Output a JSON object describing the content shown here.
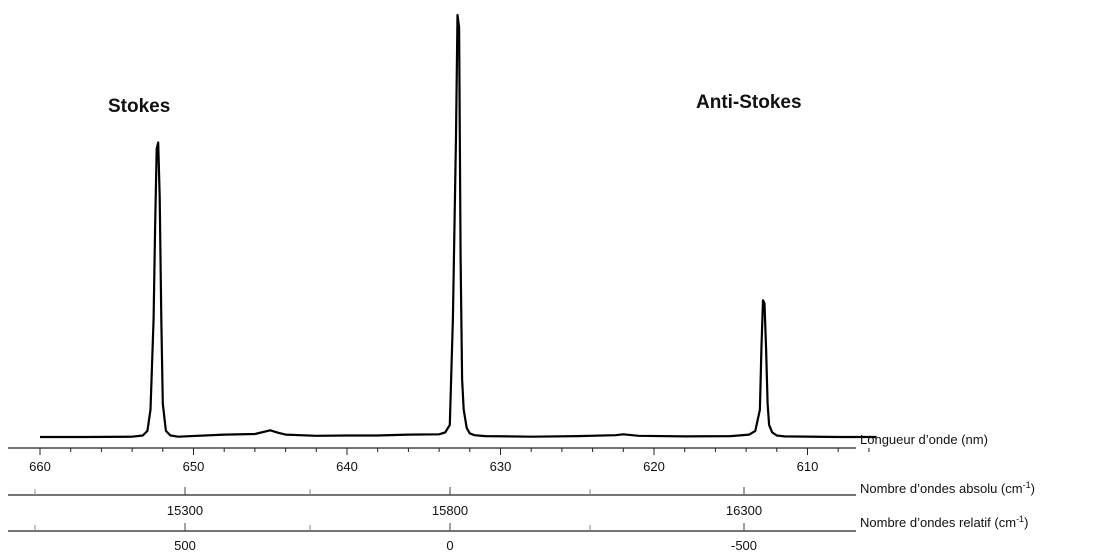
{
  "chart_data": {
    "type": "line",
    "annotations": [
      {
        "text": "Stokes",
        "x": 652.3
      },
      {
        "text": "Anti-Stokes",
        "x": 612.8
      }
    ],
    "series": [
      {
        "x": [
          660,
          657,
          654,
          653.3,
          653.0,
          652.8,
          652.6,
          652.5,
          652.4,
          652.3,
          652.2,
          652.1,
          652.0,
          651.8,
          651.5,
          651,
          648,
          646,
          645,
          644.5,
          644,
          642,
          640,
          638,
          636,
          634,
          633.6,
          633.3,
          633.1,
          632.9,
          632.8,
          632.7,
          632.6,
          632.5,
          632.4,
          632.2,
          632.0,
          631.7,
          631,
          628,
          625,
          622.5,
          622,
          621,
          618,
          615,
          613.8,
          613.4,
          613.1,
          613.0,
          612.9,
          612.8,
          612.7,
          612.6,
          612.5,
          612.3,
          612.0,
          611.5,
          608,
          605.5
        ],
        "y": [
          1.0,
          1.0,
          1.1,
          1.5,
          3.0,
          10.0,
          40.0,
          70.0,
          96.0,
          98.0,
          80.0,
          40.0,
          12.0,
          3.0,
          1.5,
          1.1,
          1.8,
          2.0,
          3.2,
          2.4,
          1.8,
          1.4,
          1.5,
          1.5,
          1.8,
          1.9,
          2.5,
          5.0,
          40.0,
          100.0,
          140.0,
          136.0,
          60.0,
          20.0,
          10.0,
          4.0,
          2.2,
          1.6,
          1.3,
          1.1,
          1.3,
          1.6,
          1.9,
          1.4,
          1.2,
          1.3,
          1.8,
          3.0,
          10.0,
          30.0,
          46.0,
          45.0,
          30.0,
          12.0,
          5.0,
          2.5,
          1.5,
          1.2,
          1.0,
          1.0
        ],
        "color": "#000000"
      }
    ],
    "axes": [
      {
        "title": "Longueur d’onde (nm)",
        "ticks": [
          "660",
          "650",
          "640",
          "630",
          "620",
          "610"
        ],
        "tick_values": [
          660,
          650,
          640,
          630,
          620,
          610
        ],
        "range": [
          660,
          605.5
        ]
      },
      {
        "title_main": "Nombre d’ondes absolu (cm",
        "title_sup": "-1",
        "title_end": ")",
        "ticks": [
          "15300",
          "15800",
          "16300"
        ]
      },
      {
        "title_main": "Nombre d’ondes relatif (cm",
        "title_sup": "-1",
        "title_end": ")",
        "ticks": [
          "500",
          "0",
          "-500"
        ]
      }
    ],
    "ylim": [
      0,
      140
    ],
    "grid": false,
    "legend": "none"
  }
}
